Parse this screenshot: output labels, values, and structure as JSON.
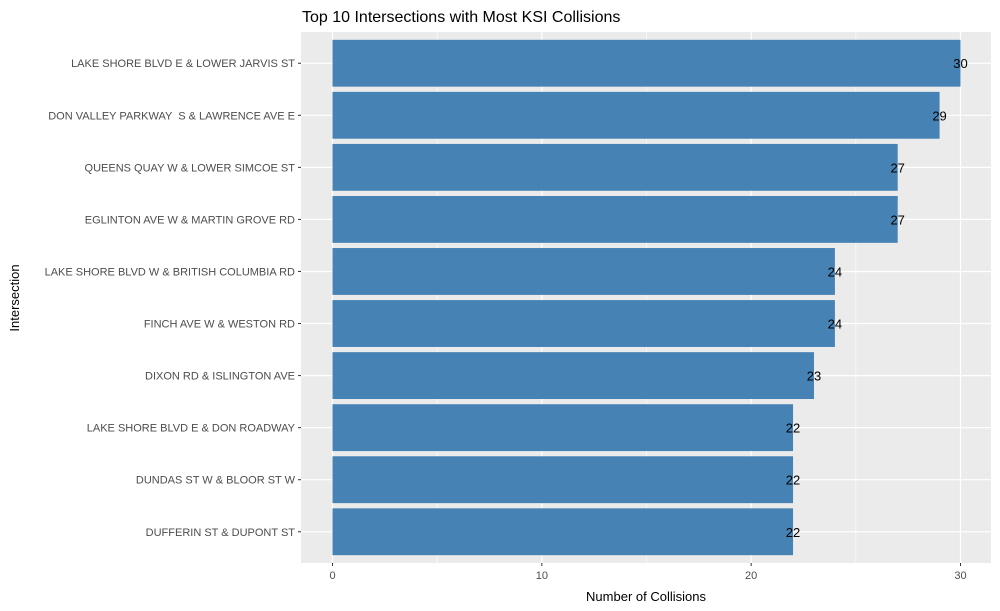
{
  "chart_data": {
    "type": "bar",
    "orientation": "horizontal",
    "title": "Top 10 Intersections with Most KSI Collisions",
    "xlabel": "Number of Collisions",
    "ylabel": "Intersection",
    "xlim": [
      0,
      30
    ],
    "x_ticks": [
      0,
      10,
      20,
      30
    ],
    "grid": true,
    "bar_color": "#4682B4",
    "panel_color": "#EBEBEB",
    "categories": [
      "LAKE SHORE BLVD E & LOWER JARVIS ST",
      "DON VALLEY PARKWAY  S & LAWRENCE AVE E",
      "QUEENS QUAY W & LOWER SIMCOE ST",
      "EGLINTON AVE W & MARTIN GROVE RD",
      "LAKE SHORE BLVD W & BRITISH COLUMBIA RD",
      "FINCH AVE W & WESTON RD",
      "DIXON RD & ISLINGTON AVE",
      "LAKE SHORE BLVD E & DON ROADWAY",
      "DUNDAS ST W & BLOOR ST W",
      "DUFFERIN ST & DUPONT ST"
    ],
    "values": [
      30,
      29,
      27,
      27,
      24,
      24,
      23,
      22,
      22,
      22
    ]
  }
}
